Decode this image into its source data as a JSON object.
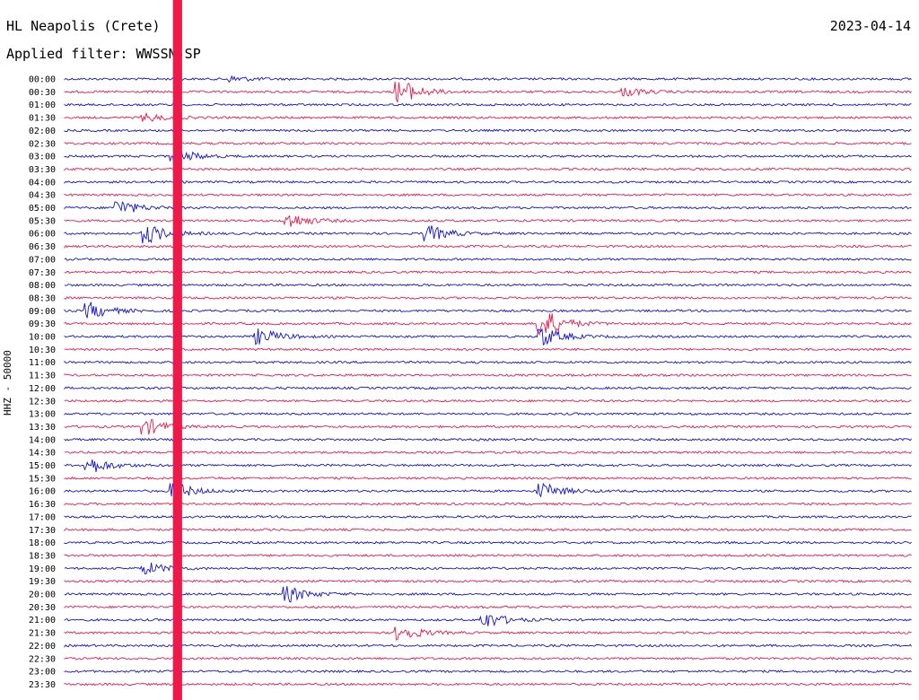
{
  "header": {
    "station": "HL Neapolis (Crete)",
    "filter": "Applied filter: WWSSN-SP",
    "date": "2023-04-14",
    "channel": "HHZ - 50000"
  },
  "colors": {
    "blue": "#1010e0",
    "red": "#f01848"
  },
  "chart_data": {
    "type": "line",
    "title": "HL Neapolis (Crete)",
    "subtitle": "Applied filter: WWSSN-SP",
    "date": "2023-04-14",
    "ylabel": "HHZ - 50000",
    "row_labels": [
      "00:00",
      "00:30",
      "01:00",
      "01:30",
      "02:00",
      "02:30",
      "03:00",
      "03:30",
      "04:00",
      "04:30",
      "05:00",
      "05:30",
      "06:00",
      "06:30",
      "07:00",
      "07:30",
      "08:00",
      "08:30",
      "09:00",
      "09:30",
      "10:00",
      "10:30",
      "11:00",
      "11:30",
      "12:00",
      "12:30",
      "13:00",
      "13:30",
      "14:00",
      "14:30",
      "15:00",
      "15:30",
      "16:00",
      "16:30",
      "17:00",
      "17:30",
      "18:00",
      "18:30",
      "19:00",
      "19:30",
      "20:00",
      "20:30",
      "21:00",
      "21:30",
      "22:00",
      "22:30",
      "23:00",
      "23:30"
    ],
    "trace_colors": [
      "blue",
      "red"
    ],
    "minutes_per_row": 30,
    "events": [
      {
        "row": 0,
        "minute": 6,
        "amp": 3
      },
      {
        "row": 1,
        "minute": 12,
        "amp": 12
      },
      {
        "row": 1,
        "minute": 20,
        "amp": 4
      },
      {
        "row": 3,
        "minute": 3,
        "amp": 4
      },
      {
        "row": 6,
        "minute": 4,
        "amp": 8
      },
      {
        "row": 10,
        "minute": 2,
        "amp": 8
      },
      {
        "row": 11,
        "minute": 8,
        "amp": 8
      },
      {
        "row": 12,
        "minute": 3,
        "amp": 10
      },
      {
        "row": 12,
        "minute": 13,
        "amp": 8
      },
      {
        "row": 18,
        "minute": 1,
        "amp": 8
      },
      {
        "row": 19,
        "minute": 17,
        "amp": 16
      },
      {
        "row": 20,
        "minute": 17,
        "amp": 10
      },
      {
        "row": 20,
        "minute": 7,
        "amp": 8
      },
      {
        "row": 27,
        "minute": 3,
        "amp": 8
      },
      {
        "row": 30,
        "minute": 1,
        "amp": 8
      },
      {
        "row": 32,
        "minute": 4,
        "amp": 8
      },
      {
        "row": 32,
        "minute": 17,
        "amp": 8
      },
      {
        "row": 38,
        "minute": 3,
        "amp": 6
      },
      {
        "row": 40,
        "minute": 8,
        "amp": 8
      },
      {
        "row": 42,
        "minute": 15,
        "amp": 8
      },
      {
        "row": 43,
        "minute": 12,
        "amp": 8
      }
    ],
    "large_event": {
      "start_row": 0,
      "minute": 4,
      "amp": 60
    }
  }
}
